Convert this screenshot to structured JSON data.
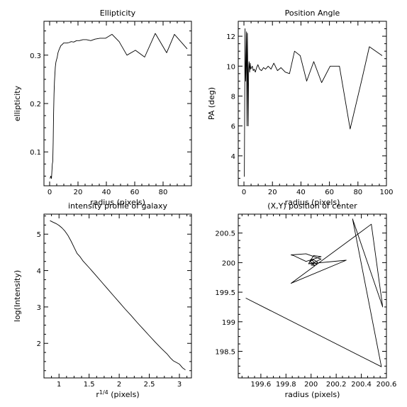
{
  "chart_data": [
    {
      "type": "line",
      "title": "Ellipticity",
      "xlabel": "radius (pixels)",
      "ylabel": "ellipticity",
      "xlim": [
        -4,
        100
      ],
      "ylim": [
        0.03,
        0.37
      ],
      "xticks": [
        0,
        20,
        40,
        60,
        80
      ],
      "yticks": [
        0.1,
        0.2,
        0.3
      ],
      "ytick_labels": [
        "0.1",
        "0.2",
        "0.3"
      ],
      "series": [
        {
          "x": [
            0.3,
            0.8,
            1.3,
            1.6,
            1.9,
            2.2,
            2.5,
            2.8,
            3.1,
            3.4,
            3.7,
            4.0,
            4.4,
            4.8,
            5.3,
            5.9,
            6.5,
            7.2,
            8.0,
            8.9,
            9.8,
            11,
            12.3,
            13.7,
            15.2,
            17,
            19,
            21,
            23.5,
            26,
            29,
            32,
            35.5,
            39.5,
            44,
            49,
            54.5,
            60.5,
            67,
            74.5,
            82.5,
            88,
            97
          ],
          "values": [
            0.045,
            0.05,
            0.045,
            0.06,
            0.075,
            0.08,
            0.12,
            0.18,
            0.22,
            0.245,
            0.26,
            0.275,
            0.285,
            0.29,
            0.295,
            0.305,
            0.31,
            0.315,
            0.32,
            0.322,
            0.325,
            0.325,
            0.325,
            0.326,
            0.328,
            0.327,
            0.33,
            0.33,
            0.332,
            0.332,
            0.33,
            0.333,
            0.335,
            0.335,
            0.343,
            0.328,
            0.3,
            0.31,
            0.296,
            0.345,
            0.305,
            0.343,
            0.313
          ]
        }
      ]
    },
    {
      "type": "line",
      "title": "Position Angle",
      "xlabel": "radius (pixels)",
      "ylabel": "PA (deg)",
      "xlim": [
        -4,
        100
      ],
      "ylim": [
        2,
        13
      ],
      "xticks": [
        0,
        20,
        40,
        60,
        80,
        100
      ],
      "yticks": [
        4,
        6,
        8,
        10,
        12
      ],
      "series": [
        {
          "x": [
            0.3,
            0.8,
            1.2,
            1.5,
            1.8,
            2.1,
            2.4,
            2.7,
            3.0,
            3.3,
            3.6,
            4.0,
            4.4,
            4.8,
            5.3,
            5.9,
            6.5,
            7.2,
            8.0,
            8.9,
            9.8,
            11,
            12.3,
            13.7,
            15.2,
            17,
            19,
            21,
            23.5,
            26,
            29,
            32,
            35.5,
            39.5,
            44,
            49,
            54.5,
            60.5,
            67,
            74.5,
            82.5,
            88,
            97
          ],
          "values": [
            2.6,
            12.5,
            9.0,
            10.2,
            12.3,
            6.0,
            12.2,
            9.5,
            6.0,
            9.8,
            10.3,
            9.6,
            10.2,
            9.8,
            9.9,
            10.0,
            9.7,
            9.8,
            9.6,
            9.9,
            10.1,
            9.8,
            9.7,
            9.9,
            9.8,
            10.0,
            9.8,
            10.2,
            9.7,
            9.9,
            9.6,
            9.5,
            11.0,
            10.7,
            9.0,
            10.3,
            8.9,
            10.0,
            10.0,
            5.8,
            9.0,
            11.3,
            10.7
          ]
        }
      ]
    },
    {
      "type": "line",
      "title": "intensity profile of galaxy",
      "xlabel": "r^{1/4} (pixels)",
      "ylabel": "log(Intensity)",
      "xlim": [
        0.75,
        3.2
      ],
      "ylim": [
        1.05,
        5.55
      ],
      "xticks": [
        1,
        1.5,
        2,
        2.5,
        3
      ],
      "xtick_labels": [
        "1",
        "1.5",
        "2",
        "2.5",
        "3"
      ],
      "yticks": [
        2,
        3,
        4,
        5
      ],
      "series": [
        {
          "x": [
            0.85,
            0.9,
            0.95,
            1.0,
            1.05,
            1.1,
            1.15,
            1.2,
            1.25,
            1.3,
            1.35,
            1.4,
            1.5,
            1.6,
            1.7,
            1.8,
            1.9,
            2.0,
            2.1,
            2.2,
            2.3,
            2.4,
            2.5,
            2.6,
            2.7,
            2.8,
            2.85,
            2.9,
            3.0,
            3.05,
            3.1
          ],
          "values": [
            5.37,
            5.33,
            5.29,
            5.24,
            5.17,
            5.08,
            4.96,
            4.81,
            4.64,
            4.47,
            4.38,
            4.26,
            4.08,
            3.89,
            3.7,
            3.51,
            3.32,
            3.13,
            2.94,
            2.76,
            2.57,
            2.39,
            2.21,
            2.03,
            1.86,
            1.7,
            1.6,
            1.52,
            1.43,
            1.33,
            1.27
          ]
        }
      ]
    },
    {
      "type": "line",
      "title": "(X,Y) position of center",
      "xlabel": "radius (pixels)",
      "ylabel": "",
      "xlim": [
        199.42,
        200.6
      ],
      "ylim": [
        198.05,
        200.82
      ],
      "xticks": [
        199.6,
        199.8,
        200,
        200.2,
        200.4,
        200.6
      ],
      "xtick_labels": [
        "199.6",
        "199.8",
        "200",
        "200.2",
        "200.4",
        "200.6"
      ],
      "yticks": [
        198.5,
        199,
        199.5,
        200,
        200.5
      ],
      "ytick_labels": [
        "198.5",
        "199",
        "199.5",
        "200",
        "200.5"
      ],
      "series": [
        {
          "x": [
            200.01,
            200.02,
            200.0,
            200.03,
            200.01,
            199.99,
            200.02,
            200.05,
            200.04,
            200.0,
            199.98,
            200.02,
            200.08,
            199.96,
            199.86,
            199.84,
            199.96,
            200.08,
            200.02,
            199.98,
            200.28,
            199.84,
            200.48,
            200.57,
            200.33,
            200.56,
            199.48
          ],
          "values": [
            200.0,
            199.98,
            199.96,
            199.95,
            199.99,
            200.02,
            200.05,
            200.01,
            199.97,
            200.06,
            199.98,
            200.12,
            200.1,
            200.02,
            200.12,
            200.13,
            200.15,
            200.06,
            200.0,
            199.98,
            200.04,
            199.65,
            200.65,
            199.25,
            200.74,
            198.24,
            199.4
          ]
        }
      ]
    }
  ]
}
